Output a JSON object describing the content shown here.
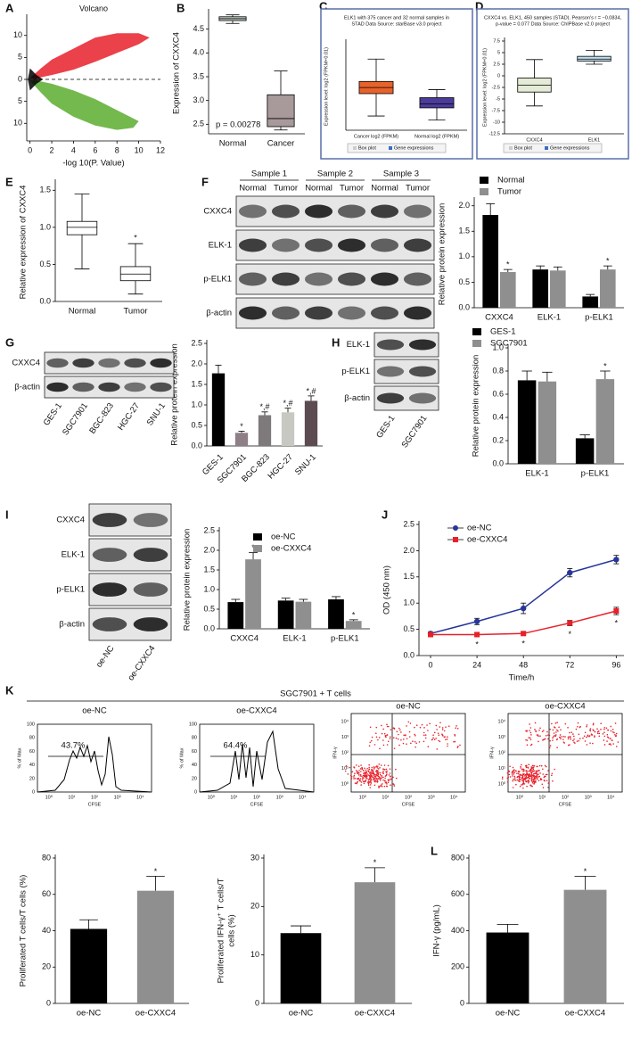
{
  "panel_labels": [
    "A",
    "B",
    "C",
    "D",
    "E",
    "F",
    "G",
    "H",
    "I",
    "J",
    "K",
    "L"
  ],
  "chart_data": [
    {
      "type": "volcano",
      "title": "Volcano",
      "xlabel": "-log 10(P. Value)",
      "ylabel": "logFC",
      "xlim": [
        -0.3,
        12
      ],
      "xticks": [
        0,
        2,
        4,
        6,
        8,
        10,
        12
      ],
      "ylim": [
        -14,
        14
      ],
      "yticks": [
        10,
        5,
        0,
        {
          "value": -5,
          "label": "5"
        },
        {
          "value": -10,
          "label": "10"
        }
      ],
      "hline": 0,
      "colors": [
        "#e8202a",
        "#5aad2e",
        "#000000"
      ]
    },
    {
      "type": "box",
      "ylabel": "Expression of CXXC4",
      "categories": [
        "Normal",
        "Cancer"
      ],
      "boxes": [
        {
          "min": 4.62,
          "q1": 4.68,
          "median": 4.72,
          "q3": 4.76,
          "max": 4.8
        },
        {
          "min": 2.38,
          "q1": 2.45,
          "median": 2.62,
          "q3": 3.12,
          "max": 3.62
        }
      ],
      "colors": [
        "#c9d3c9",
        "#a8999b"
      ],
      "ylim": [
        2.3,
        4.85
      ],
      "yticks": [
        2.5,
        {
          "value": 3,
          "label": "3.0"
        },
        3.5,
        {
          "value": 4,
          "label": "4.0"
        },
        4.5
      ],
      "annotation": "p = 0.00278"
    },
    {
      "type": "box",
      "title": [
        "ELK1 with 375 cancer and 32 normal samples in",
        "STAD Data Source: starBase v3.0 project"
      ],
      "ylabel": "Expression level: log2 (FPKM+0.01)",
      "categories": [
        "Cancer log2 (FPKM)",
        "Normal log2 (FPKM)"
      ],
      "boxes": [
        {
          "min": 2.2,
          "q1": 3.3,
          "median": 3.6,
          "q3": 3.9,
          "max": 5.0
        },
        {
          "min": 2.0,
          "q1": 2.6,
          "median": 2.8,
          "q3": 3.1,
          "max": 3.5
        }
      ],
      "colors": [
        "#e8622b",
        "#4b3b9a"
      ],
      "ylim": [
        1.5,
        5.8
      ],
      "legend": [
        "Box plot",
        "Gene expressions"
      ]
    },
    {
      "type": "box",
      "title": [
        "CXXC4 vs. ELK1, 450 samples (STAD). Pearson's r = −0.0834,",
        "p-value = 0.077  Data Source: ChIPBase v2.0 project"
      ],
      "ylabel": "Expression level: log2 (FPKM+0.01)",
      "categories": [
        "CXXC4",
        "ELK1"
      ],
      "boxes": [
        {
          "min": -6.5,
          "q1": -3.5,
          "median": -2,
          "q3": -0.5,
          "max": 3.5
        },
        {
          "min": 2.5,
          "q1": 3.2,
          "median": 3.6,
          "q3": 4.2,
          "max": 5.5
        }
      ],
      "colors": [
        "#e4ebd6",
        "#bfe0ee"
      ],
      "ylim": [
        -12.5,
        7.5
      ],
      "yticks": [
        7.5,
        5,
        2.5,
        0,
        -2.5,
        -5,
        -7.5,
        -10,
        -12.5
      ],
      "legend": [
        "Box plot",
        "Gene expressions"
      ]
    },
    {
      "type": "box",
      "ylabel": "Relative expression of CXXC4",
      "categories": [
        "Normal",
        "Tumor"
      ],
      "boxes": [
        {
          "min": 0.44,
          "q1": 0.9,
          "median": 1.0,
          "q3": 1.08,
          "max": 1.45
        },
        {
          "min": 0.1,
          "q1": 0.28,
          "median": 0.37,
          "q3": 0.47,
          "max": 0.78
        }
      ],
      "colors": [
        "#ffffff",
        "#ffffff"
      ],
      "sig": [
        null,
        "*"
      ],
      "ylim": [
        0,
        1.6
      ],
      "yticks": [
        {
          "value": 0,
          "label": "0.0"
        },
        0.5,
        {
          "value": 1,
          "label": "1.0"
        },
        1.5
      ]
    },
    {
      "type": "grouped-bar",
      "ylabel": "Relative protein expression",
      "categories": [
        "CXXC4",
        "ELK-1",
        "p-ELK1"
      ],
      "series": [
        {
          "name": "Normal",
          "color": "#000000",
          "values": [
            1.82,
            0.75,
            0.22
          ],
          "errors": [
            0.22,
            0.07,
            0.04
          ]
        },
        {
          "name": "Tumor",
          "color": "#8f8f8f",
          "values": [
            0.7,
            0.73,
            0.75
          ],
          "errors": [
            0.05,
            0.07,
            0.07
          ],
          "sig": [
            "*",
            null,
            "*"
          ]
        }
      ],
      "ylim": [
        0,
        2.1
      ],
      "yticks": [
        {
          "value": 0,
          "label": "0.0"
        },
        0.5,
        {
          "value": 1,
          "label": "1.0"
        },
        1.5,
        {
          "value": 2,
          "label": "2.0"
        }
      ]
    },
    {
      "type": "bar",
      "ylabel": "Relative protein expression",
      "categories": [
        "GES-1",
        "SGC7901",
        "BGC-823",
        "HGC-27",
        "SNU-1"
      ],
      "values": [
        1.77,
        0.32,
        0.75,
        0.82,
        1.1
      ],
      "errors": [
        0.2,
        0.04,
        0.08,
        0.1,
        0.12
      ],
      "colors": [
        "#000000",
        "#8e7f86",
        "#7e7a7c",
        "#c8c8c2",
        "#5d4b52"
      ],
      "sig": [
        null,
        "*",
        "*,#",
        "*,#",
        "*,#"
      ],
      "rotate_labels": true,
      "ylim": [
        0,
        2.5
      ],
      "yticks": [
        {
          "value": 0,
          "label": "0.0"
        },
        0.5,
        {
          "value": 1,
          "label": "1.0"
        },
        1.5,
        {
          "value": 2,
          "label": "2.0"
        },
        2.5
      ]
    },
    {
      "type": "grouped-bar",
      "ylabel": "Relative protein expression",
      "categories": [
        "ELK-1",
        "p-ELK1"
      ],
      "series": [
        {
          "name": "GES-1",
          "color": "#000000",
          "values": [
            0.72,
            0.22
          ],
          "errors": [
            0.08,
            0.03
          ]
        },
        {
          "name": "SGC7901",
          "color": "#8f8f8f",
          "values": [
            0.71,
            0.73
          ],
          "errors": [
            0.08,
            0.07
          ],
          "sig": [
            null,
            "*"
          ]
        }
      ],
      "ylim": [
        0,
        1
      ],
      "yticks": [
        {
          "value": 0,
          "label": "0.0"
        },
        0.2,
        0.4,
        0.6,
        0.8,
        {
          "value": 1,
          "label": "1.0"
        }
      ]
    },
    {
      "type": "grouped-bar",
      "ylabel": "Relative protein expression",
      "categories": [
        "CXXC4",
        "ELK-1",
        "p-ELK1"
      ],
      "series": [
        {
          "name": "oe-NC",
          "color": "#000000",
          "values": [
            0.68,
            0.72,
            0.75
          ],
          "errors": [
            0.07,
            0.06,
            0.07
          ]
        },
        {
          "name": "oe-CXXC4",
          "color": "#8f8f8f",
          "values": [
            1.77,
            0.69,
            0.2
          ],
          "errors": [
            0.17,
            0.06,
            0.03
          ],
          "sig": [
            "*",
            null,
            "*"
          ]
        }
      ],
      "ylim": [
        0,
        2.5
      ],
      "yticks": [
        {
          "value": 0,
          "label": "0.0"
        },
        0.5,
        {
          "value": 1,
          "label": "1.0"
        },
        1.5,
        {
          "value": 2,
          "label": "2.0"
        },
        2.5
      ]
    },
    {
      "type": "line",
      "xlabel": "Time/h",
      "ylabel": "OD (450 nm)",
      "x": [
        0,
        24,
        48,
        72,
        96
      ],
      "xlim": [
        -6,
        100
      ],
      "xticks": [
        0,
        24,
        48,
        72,
        96
      ],
      "series": [
        {
          "name": "oe-NC",
          "color": "#27359a",
          "marker": "circle",
          "values": [
            0.42,
            0.65,
            0.9,
            1.58,
            1.83
          ],
          "errors": [
            0.03,
            0.06,
            0.1,
            0.08,
            0.08
          ]
        },
        {
          "name": "oe-CXXC4",
          "color": "#e8202a",
          "marker": "square",
          "values": [
            0.4,
            0.4,
            0.42,
            0.62,
            0.85
          ],
          "errors": [
            0.03,
            0.03,
            0.03,
            0.05,
            0.07
          ],
          "sig": [
            null,
            "*",
            "*",
            "*",
            "*"
          ]
        }
      ],
      "ylim": [
        0,
        2.5
      ],
      "yticks": [
        {
          "value": 0,
          "label": "0.0"
        },
        0.5,
        {
          "value": 1,
          "label": "1.0"
        },
        1.5,
        {
          "value": 2,
          "label": "2.0"
        },
        2.5
      ]
    },
    {
      "type": "bar",
      "ylabel": "Proliferated T cells/T cells (%)",
      "categories": [
        "oe-NC",
        "oe-CXXC4"
      ],
      "values": [
        41,
        62
      ],
      "errors": [
        5,
        8
      ],
      "colors": [
        "#000000",
        "#8f8f8f"
      ],
      "sig": [
        null,
        "*"
      ],
      "ylim": [
        0,
        80
      ],
      "yticks": [
        0,
        20,
        40,
        60,
        80
      ]
    },
    {
      "type": "bar",
      "ylabel": [
        "Proliferated IFN-γ⁺ T cells/T",
        "cells (%)"
      ],
      "categories": [
        "oe-NC",
        "oe-CXXC4"
      ],
      "values": [
        14.5,
        25
      ],
      "errors": [
        1.5,
        3
      ],
      "colors": [
        "#000000",
        "#8f8f8f"
      ],
      "sig": [
        null,
        "*"
      ],
      "ylim": [
        0,
        30
      ],
      "yticks": [
        0,
        10,
        20,
        30
      ]
    },
    {
      "type": "bar",
      "ylabel": "IFN-γ (pg/mL)",
      "categories": [
        "oe-NC",
        "oe-CXXC4"
      ],
      "values": [
        390,
        625
      ],
      "errors": [
        45,
        75
      ],
      "colors": [
        "#000000",
        "#8f8f8f"
      ],
      "sig": [
        null,
        "*"
      ],
      "ylim": [
        0,
        800
      ],
      "yticks": [
        0,
        200,
        400,
        600,
        800
      ]
    }
  ],
  "blots": [
    {
      "headers": [
        "Sample 1",
        "Sample 2",
        "Sample 3"
      ],
      "lanes": [
        "Normal",
        "Tumor",
        "Normal",
        "Tumor",
        "Normal",
        "Tumor"
      ],
      "rows": [
        "CXXC4",
        "ELK-1",
        "p-ELK1",
        "β-actin"
      ]
    },
    {
      "lanes": [
        "GES-1",
        "SGC7901",
        "BGC-823",
        "HGC-27",
        "SNU-1"
      ],
      "rows": [
        "CXXC4",
        "β-actin"
      ]
    },
    {
      "lanes": [
        "GES-1",
        "SGC7901"
      ],
      "rows": [
        "ELK-1",
        "p-ELK1",
        "β-actin"
      ]
    },
    {
      "lanes": [
        "oe-NC",
        "oe-CXXC4"
      ],
      "rows": [
        "CXXC4",
        "ELK-1",
        "p-ELK1",
        "β-actin"
      ]
    }
  ],
  "flow": {
    "title": "SGC7901 + T cells",
    "histograms": [
      {
        "label": "oe-NC",
        "gate": "43.7%"
      },
      {
        "label": "oe-CXXC4",
        "gate": "64.4%"
      }
    ],
    "dots": [
      {
        "label": "oe-NC"
      },
      {
        "label": "oe-CXXC4"
      }
    ],
    "hist_ylabel": "% of Max",
    "xlabel": "CFSE",
    "dot_ylabel": "IFN-γ",
    "hist_yticks": [
      0,
      20,
      40,
      60,
      80,
      100
    ],
    "log_ticks": [
      "10⁰",
      "10¹",
      "10²",
      "10³",
      "10⁴"
    ]
  }
}
